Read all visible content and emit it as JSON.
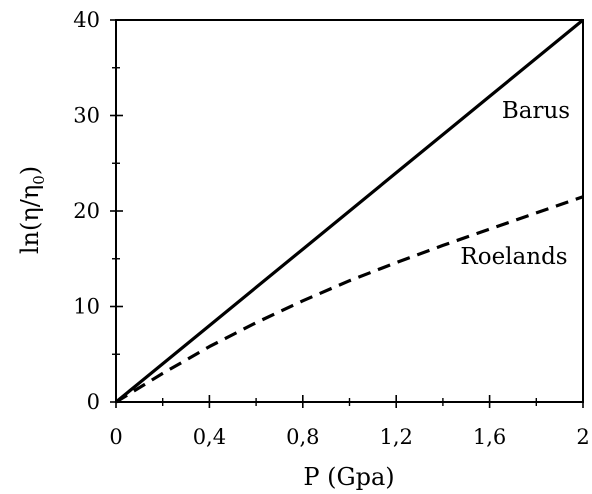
{
  "chart_data": {
    "type": "line",
    "title": "",
    "xlabel": "P (Gpa)",
    "ylabel": {
      "main": "ln(η/η",
      "subscript": "0",
      "close": ")"
    },
    "xlim": [
      0,
      2
    ],
    "ylim": [
      0,
      40
    ],
    "x_ticks": [
      0,
      0.4,
      0.8,
      1.2,
      1.6,
      2
    ],
    "x_tick_labels": [
      "0",
      "0,4",
      "0,8",
      "1,2",
      "1,6",
      "2"
    ],
    "y_ticks": [
      0,
      10,
      20,
      30,
      40
    ],
    "y_tick_labels": [
      "0",
      "10",
      "20",
      "30",
      "40"
    ],
    "grid": false,
    "legend": "none (series labeled inline)",
    "series": [
      {
        "name": "Barus",
        "style": "solid",
        "color": "#000000",
        "x": [
          0,
          0.4,
          0.8,
          1.2,
          1.6,
          2.0
        ],
        "y": [
          0,
          8,
          16,
          24,
          32,
          40
        ]
      },
      {
        "name": "Roelands",
        "style": "dashed",
        "color": "#000000",
        "x": [
          0,
          0.2,
          0.4,
          0.6,
          0.8,
          1.0,
          1.2,
          1.4,
          1.6,
          1.8,
          2.0
        ],
        "y": [
          0,
          3.0,
          5.8,
          8.3,
          10.6,
          12.7,
          14.6,
          16.4,
          18.1,
          19.8,
          21.5
        ]
      }
    ]
  }
}
